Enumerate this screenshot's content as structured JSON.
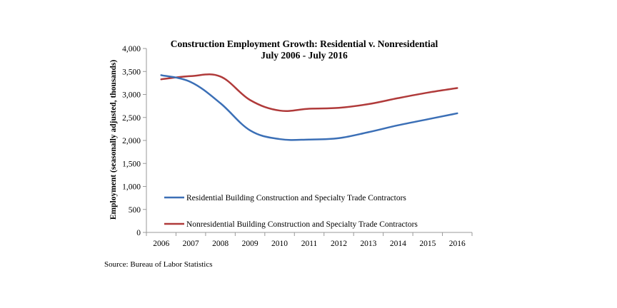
{
  "chart_data": {
    "type": "line",
    "title_line1": "Construction Employment Growth:  Residential v. Nonresidential",
    "title_line2": "July 2006 - July 2016",
    "xlabel": "",
    "ylabel": "Employment (seasonally adjusted, thousands)",
    "x": [
      "2006",
      "2007",
      "2008",
      "2009",
      "2010",
      "2011",
      "2012",
      "2013",
      "2014",
      "2015",
      "2016"
    ],
    "ylim": [
      0,
      4000
    ],
    "yticks": [
      0,
      500,
      1000,
      1500,
      2000,
      2500,
      3000,
      3500,
      4000
    ],
    "ytick_labels": [
      "0",
      "500",
      "1,000",
      "1,500",
      "2,000",
      "2,500",
      "3,000",
      "3,500",
      "4,000"
    ],
    "grid": false,
    "legend_position": "lower-left",
    "series": [
      {
        "name": "Residential Building Construction and Specialty Trade Contractors",
        "color": "#3b6fb6",
        "values": [
          3420,
          3270,
          2810,
          2220,
          2030,
          2020,
          2050,
          2180,
          2330,
          2460,
          2590
        ]
      },
      {
        "name": "Nonresidential Building Construction and Specialty Trade Contractors",
        "color": "#b03a3a",
        "values": [
          3330,
          3400,
          3390,
          2880,
          2650,
          2690,
          2710,
          2790,
          2920,
          3040,
          3140
        ]
      }
    ]
  },
  "source": "Source:  Bureau of Labor Statistics"
}
